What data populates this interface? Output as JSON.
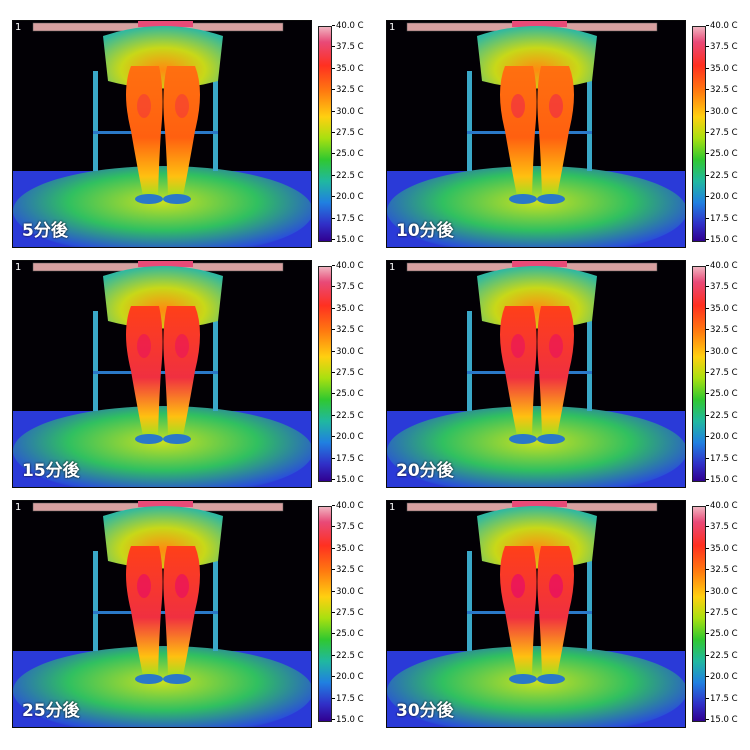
{
  "scale_ticks": [
    "40.0 C",
    "37.5 C",
    "35.0 C",
    "32.5 C",
    "30.0 C",
    "27.5 C",
    "25.0 C",
    "22.5 C",
    "20.0 C",
    "17.5 C",
    "15.0 C"
  ],
  "panels": [
    {
      "index": "1",
      "time": "5分後",
      "heat": 0.2
    },
    {
      "index": "1",
      "time": "10分後",
      "heat": 0.4
    },
    {
      "index": "1",
      "time": "15分後",
      "heat": 0.6
    },
    {
      "index": "1",
      "time": "20分後",
      "heat": 0.7
    },
    {
      "index": "1",
      "time": "25分後",
      "heat": 0.85
    },
    {
      "index": "1",
      "time": "30分後",
      "heat": 1.0
    }
  ],
  "colors": {
    "background": "#020005",
    "floor": "#2a3ad8",
    "legs": "#ff6a10",
    "legs_hot": "#f02040",
    "chair": "#3aa8c8",
    "skirt": "#a8e010"
  }
}
